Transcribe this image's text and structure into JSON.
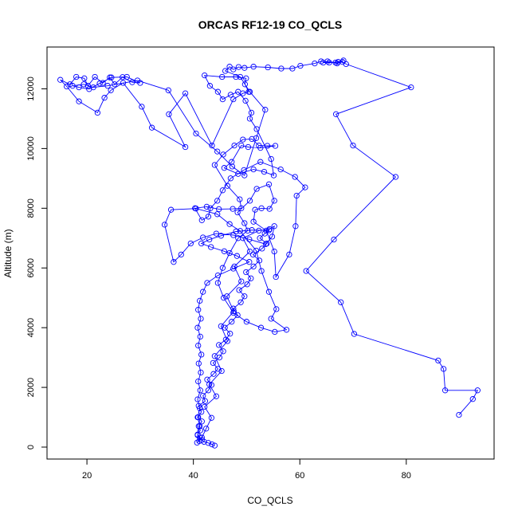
{
  "chart_data": {
    "type": "line",
    "title": "ORCAS RF12-19 CO_QCLS",
    "xlabel": "CO_QCLS",
    "ylabel": "Altitude (m)",
    "xlim": [
      12.5,
      96.5
    ],
    "ylim": [
      -400,
      13400
    ],
    "xticks": [
      20,
      40,
      60,
      80
    ],
    "yticks": [
      0,
      2000,
      4000,
      6000,
      8000,
      10000,
      12000
    ],
    "grid": false,
    "series_color": "#0000ff",
    "marker": "open-circle",
    "series": [
      {
        "points": [
          [
            44.0,
            50
          ],
          [
            43.5,
            90
          ],
          [
            42.8,
            140
          ],
          [
            42.0,
            180
          ],
          [
            41.6,
            240
          ],
          [
            41.2,
            320
          ],
          [
            40.8,
            420
          ],
          [
            41.3,
            560
          ],
          [
            41.0,
            700
          ],
          [
            41.6,
            860
          ],
          [
            40.9,
            1000
          ],
          [
            41.5,
            1180
          ],
          [
            41.0,
            1380
          ],
          [
            42.2,
            1540
          ],
          [
            41.8,
            1720
          ],
          [
            42.8,
            1900
          ],
          [
            43.4,
            2080
          ],
          [
            42.6,
            2260
          ],
          [
            43.8,
            2450
          ],
          [
            44.6,
            2620
          ],
          [
            43.7,
            2820
          ],
          [
            44.9,
            3000
          ],
          [
            45.6,
            3210
          ],
          [
            44.8,
            3420
          ],
          [
            46.1,
            3600
          ],
          [
            46.9,
            3800
          ],
          [
            45.9,
            4000
          ],
          [
            47.2,
            4200
          ],
          [
            48.3,
            4420
          ],
          [
            47.5,
            4640
          ],
          [
            48.9,
            4850
          ],
          [
            49.6,
            5050
          ],
          [
            48.6,
            5260
          ],
          [
            50.1,
            5450
          ],
          [
            50.8,
            5650
          ],
          [
            49.9,
            5860
          ],
          [
            51.3,
            6050
          ],
          [
            52.4,
            6250
          ],
          [
            51.2,
            6450
          ],
          [
            52.9,
            6650
          ],
          [
            53.8,
            6820
          ],
          [
            52.5,
            7000
          ],
          [
            53.4,
            7150
          ],
          [
            54.2,
            7260
          ],
          [
            51.0,
            7270
          ],
          [
            48.0,
            7220
          ],
          [
            45.2,
            7080
          ],
          [
            43.0,
            6950
          ],
          [
            41.5,
            6820
          ],
          [
            43.3,
            6700
          ],
          [
            45.8,
            6560
          ],
          [
            48.2,
            6400
          ],
          [
            50.5,
            6200
          ],
          [
            47.5,
            5980
          ],
          [
            44.6,
            5750
          ],
          [
            42.6,
            5500
          ],
          [
            41.8,
            5200
          ],
          [
            41.2,
            4900
          ],
          [
            40.9,
            4600
          ],
          [
            41.4,
            4300
          ],
          [
            40.8,
            4000
          ],
          [
            41.3,
            3700
          ],
          [
            40.9,
            3400
          ],
          [
            41.5,
            3100
          ],
          [
            41.0,
            2800
          ],
          [
            41.4,
            2500
          ],
          [
            40.9,
            2200
          ],
          [
            41.3,
            1900
          ],
          [
            40.8,
            1600
          ],
          [
            41.2,
            1300
          ],
          [
            40.8,
            1000
          ],
          [
            41.2,
            700
          ],
          [
            40.8,
            400
          ],
          [
            41.1,
            200
          ],
          [
            40.7,
            150
          ],
          [
            41.6,
            320
          ],
          [
            42.4,
            620
          ],
          [
            43.4,
            980
          ],
          [
            42.1,
            1350
          ],
          [
            44.3,
            1700
          ],
          [
            43.0,
            2100
          ],
          [
            45.3,
            2550
          ],
          [
            44.0,
            3050
          ],
          [
            46.4,
            3550
          ],
          [
            45.2,
            4050
          ],
          [
            47.6,
            4550
          ],
          [
            46.3,
            5050
          ],
          [
            49.0,
            5550
          ],
          [
            47.7,
            6050
          ],
          [
            50.6,
            6550
          ],
          [
            49.3,
            7000
          ],
          [
            52.3,
            7250
          ],
          [
            54.3,
            7300
          ],
          [
            55.2,
            7400
          ],
          [
            54.8,
            7050
          ],
          [
            53.6,
            6800
          ],
          [
            50.5,
            6960
          ],
          [
            47.5,
            7100
          ],
          [
            44.3,
            7150
          ],
          [
            41.8,
            7020
          ],
          [
            39.5,
            6820
          ],
          [
            37.7,
            6450
          ],
          [
            36.3,
            6200
          ],
          [
            34.6,
            7450
          ],
          [
            35.8,
            7950
          ],
          [
            40.5,
            7990
          ],
          [
            44.5,
            7800
          ],
          [
            46.8,
            7470
          ],
          [
            48.8,
            7240
          ],
          [
            51.8,
            6580
          ],
          [
            52.8,
            5900
          ],
          [
            54.2,
            5200
          ],
          [
            55.6,
            4620
          ],
          [
            54.6,
            4300
          ],
          [
            57.5,
            3930
          ],
          [
            55.3,
            3860
          ],
          [
            52.7,
            4000
          ],
          [
            50.0,
            4200
          ],
          [
            47.5,
            4500
          ],
          [
            45.7,
            5000
          ],
          [
            44.6,
            5500
          ],
          [
            45.5,
            6000
          ],
          [
            46.8,
            6500
          ],
          [
            48.4,
            7000
          ],
          [
            50.2,
            7250
          ],
          [
            49.6,
            7500
          ],
          [
            48.3,
            7860
          ],
          [
            50.6,
            8250
          ],
          [
            51.9,
            8650
          ],
          [
            54.2,
            8800
          ],
          [
            55.2,
            8250
          ],
          [
            54.3,
            7980
          ],
          [
            52.8,
            8000
          ],
          [
            51.6,
            7950
          ],
          [
            51.3,
            7550
          ],
          [
            53.7,
            7250
          ],
          [
            55.2,
            6550
          ],
          [
            55.5,
            5700
          ],
          [
            58.0,
            6450
          ],
          [
            59.2,
            7400
          ],
          [
            59.4,
            8420
          ],
          [
            61.0,
            8700
          ],
          [
            59.1,
            9050
          ],
          [
            56.4,
            9300
          ],
          [
            52.6,
            9550
          ],
          [
            49.5,
            9280
          ],
          [
            47.0,
            9000
          ],
          [
            45.5,
            8600
          ],
          [
            44.5,
            8250
          ],
          [
            43.2,
            8000
          ],
          [
            42.8,
            7720
          ],
          [
            41.6,
            7600
          ],
          [
            40.3,
            8000
          ],
          [
            42.5,
            8050
          ],
          [
            44.8,
            7970
          ],
          [
            47.4,
            7980
          ],
          [
            49.0,
            8000
          ],
          [
            48.7,
            8300
          ],
          [
            46.4,
            8750
          ],
          [
            44.0,
            9450
          ],
          [
            45.6,
            9800
          ],
          [
            47.7,
            10100
          ],
          [
            49.3,
            10300
          ],
          [
            51.0,
            10320
          ],
          [
            52.3,
            10100
          ],
          [
            53.9,
            10090
          ],
          [
            55.4,
            10090
          ],
          [
            52.6,
            10020
          ],
          [
            50.3,
            10050
          ],
          [
            49.0,
            10100
          ],
          [
            47.2,
            9550
          ],
          [
            45.8,
            9350
          ],
          [
            48.4,
            9150
          ],
          [
            51.3,
            9300
          ],
          [
            53.3,
            9220
          ],
          [
            55.1,
            9100
          ],
          [
            54.6,
            9650
          ],
          [
            51.9,
            10650
          ],
          [
            50.6,
            11000
          ],
          [
            50.9,
            11200
          ],
          [
            49.8,
            11600
          ],
          [
            48.4,
            11900
          ],
          [
            47.0,
            11800
          ],
          [
            45.5,
            11650
          ],
          [
            44.6,
            11900
          ],
          [
            43.1,
            12100
          ],
          [
            42.1,
            12450
          ],
          [
            45.4,
            12400
          ],
          [
            48.0,
            12400
          ],
          [
            49.9,
            12350
          ],
          [
            49.7,
            12150
          ],
          [
            50.4,
            11900
          ],
          [
            49.3,
            11850
          ],
          [
            47.5,
            11650
          ],
          [
            43.5,
            10100
          ],
          [
            38.5,
            11850
          ],
          [
            35.4,
            11150
          ],
          [
            38.5,
            10050
          ],
          [
            32.2,
            10700
          ],
          [
            30.3,
            11400
          ],
          [
            26.8,
            12200
          ],
          [
            24.5,
            11950
          ],
          [
            23.3,
            11700
          ],
          [
            22.0,
            11200
          ],
          [
            18.5,
            11580
          ],
          [
            16.2,
            12080
          ],
          [
            15.0,
            12300
          ],
          [
            16.8,
            12150
          ],
          [
            18.0,
            12400
          ],
          [
            19.5,
            12350
          ],
          [
            20.2,
            12100
          ],
          [
            21.5,
            12400
          ],
          [
            23.0,
            12200
          ],
          [
            24.3,
            12380
          ],
          [
            25.2,
            12150
          ],
          [
            26.7,
            12390
          ],
          [
            28.5,
            12220
          ],
          [
            30.0,
            12200
          ],
          [
            27.5,
            12400
          ],
          [
            24.6,
            12380
          ],
          [
            22.4,
            12180
          ],
          [
            20.4,
            11990
          ],
          [
            18.5,
            12050
          ],
          [
            17.3,
            12100
          ],
          [
            19.4,
            12150
          ],
          [
            21.2,
            12050
          ],
          [
            23.9,
            12100
          ],
          [
            29.5,
            12280
          ],
          [
            35.3,
            11950
          ],
          [
            40.5,
            10500
          ],
          [
            44.5,
            9900
          ],
          [
            47.3,
            9400
          ],
          [
            49.6,
            9100
          ],
          [
            51.8,
            10350
          ],
          [
            53.5,
            11300
          ],
          [
            50.6,
            11900
          ],
          [
            48.8,
            12400
          ],
          [
            46.0,
            12600
          ],
          [
            46.8,
            12740
          ],
          [
            47.5,
            12650
          ],
          [
            48.5,
            12730
          ],
          [
            49.6,
            12700
          ],
          [
            51.3,
            12740
          ],
          [
            54.0,
            12720
          ],
          [
            56.5,
            12680
          ],
          [
            58.6,
            12680
          ],
          [
            60.1,
            12770
          ],
          [
            62.8,
            12850
          ],
          [
            64.0,
            12920
          ],
          [
            65.5,
            12880
          ],
          [
            67.2,
            12900
          ],
          [
            68.2,
            12950
          ],
          [
            67.0,
            12850
          ],
          [
            65.2,
            12920
          ],
          [
            64.4,
            12880
          ],
          [
            66.7,
            12880
          ],
          [
            68.0,
            12900
          ],
          [
            68.7,
            12830
          ],
          [
            80.9,
            12050
          ],
          [
            66.8,
            11150
          ],
          [
            70.0,
            10100
          ],
          [
            78.0,
            9050
          ],
          [
            66.4,
            6950
          ],
          [
            61.2,
            5900
          ],
          [
            67.7,
            4850
          ],
          [
            70.2,
            3790
          ],
          [
            86.0,
            2900
          ],
          [
            87.0,
            2620
          ],
          [
            87.3,
            1900
          ],
          [
            93.4,
            1900
          ],
          [
            92.5,
            1610
          ],
          [
            89.9,
            1080
          ]
        ]
      }
    ]
  }
}
